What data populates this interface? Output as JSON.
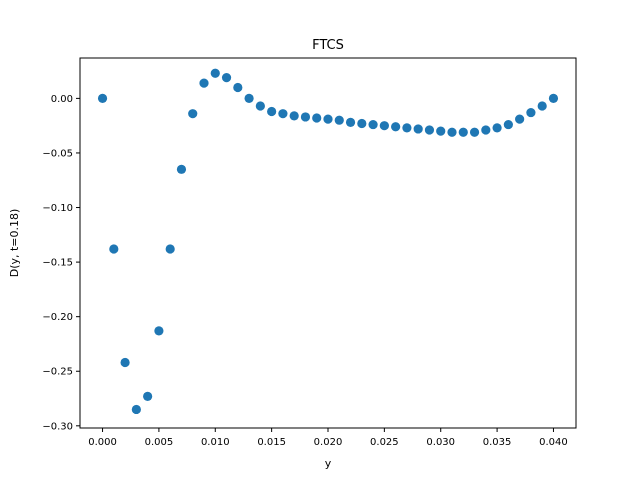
{
  "chart_data": {
    "type": "scatter",
    "title": "FTCS",
    "xlabel": "y",
    "ylabel": "D(y, t=0.18)",
    "xlim": [
      -0.002,
      0.002
    ],
    "ylim": [
      -0.302,
      0.037
    ],
    "x_ticks": [
      0.0,
      0.005,
      0.01,
      0.015,
      0.02,
      0.025,
      0.03,
      0.035,
      0.04
    ],
    "x_tick_labels": [
      "0.000",
      "0.005",
      "0.010",
      "0.015",
      "0.020",
      "0.025",
      "0.030",
      "0.035",
      "0.040"
    ],
    "y_ticks": [
      0.0,
      -0.05,
      -0.1,
      -0.15,
      -0.2,
      -0.25,
      -0.3
    ],
    "y_tick_labels": [
      "0.00",
      "−0.05",
      "−0.10",
      "−0.15",
      "−0.20",
      "−0.25",
      "−0.30"
    ],
    "grid": false,
    "marker_color": "#1f77b4",
    "series": [
      {
        "x": [
          0.0,
          0.001,
          0.002,
          0.003,
          0.004,
          0.005,
          0.006,
          0.007,
          0.008,
          0.009,
          0.01,
          0.011,
          0.012,
          0.013,
          0.014,
          0.015,
          0.016,
          0.017,
          0.018,
          0.019,
          0.02,
          0.021,
          0.022,
          0.023,
          0.024,
          0.025,
          0.026,
          0.027,
          0.028,
          0.029,
          0.03,
          0.031,
          0.032,
          0.033,
          0.034,
          0.035,
          0.036,
          0.037,
          0.038,
          0.039,
          0.04
        ],
        "y": [
          0.0,
          -0.138,
          -0.242,
          -0.285,
          -0.273,
          -0.213,
          -0.138,
          -0.065,
          -0.014,
          0.014,
          0.023,
          0.019,
          0.01,
          0.0,
          -0.007,
          -0.012,
          -0.014,
          -0.016,
          -0.017,
          -0.018,
          -0.019,
          -0.02,
          -0.022,
          -0.023,
          -0.024,
          -0.025,
          -0.026,
          -0.027,
          -0.028,
          -0.029,
          -0.03,
          -0.031,
          -0.031,
          -0.031,
          -0.029,
          -0.027,
          -0.024,
          -0.019,
          -0.013,
          -0.007,
          0.0
        ]
      }
    ]
  }
}
